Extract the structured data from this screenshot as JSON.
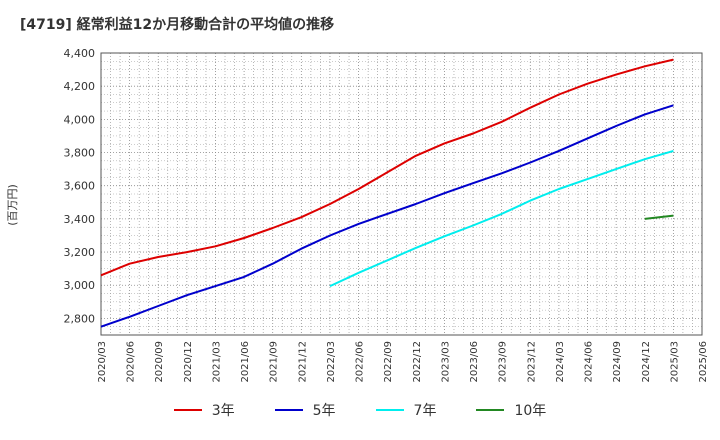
{
  "chart_data": {
    "type": "line",
    "title": "[4719]  経常利益12か月移動合計の平均値の推移",
    "ylabel": "(百万円)",
    "xlabel": "",
    "ylim": [
      2700,
      4400
    ],
    "yticks": [
      2800,
      3000,
      3200,
      3400,
      3600,
      3800,
      4000,
      4200,
      4400
    ],
    "ytick_labels": [
      "2,800",
      "3,000",
      "3,200",
      "3,400",
      "3,600",
      "3,800",
      "4,000",
      "4,200",
      "4,400"
    ],
    "x_categories": [
      "2020/03",
      "2020/06",
      "2020/09",
      "2020/12",
      "2021/03",
      "2021/06",
      "2021/09",
      "2021/12",
      "2022/03",
      "2022/06",
      "2022/09",
      "2022/12",
      "2023/03",
      "2023/06",
      "2023/09",
      "2023/12",
      "2024/03",
      "2024/06",
      "2024/09",
      "2024/12",
      "2025/03",
      "2025/06"
    ],
    "grid": true,
    "legend_position": "bottom",
    "series": [
      {
        "name": "3年",
        "color": "#dd0000",
        "x": [
          "2020/03",
          "2020/06",
          "2020/09",
          "2020/12",
          "2021/03",
          "2021/06",
          "2021/09",
          "2021/12",
          "2022/03",
          "2022/06",
          "2022/09",
          "2022/12",
          "2023/03",
          "2023/06",
          "2023/09",
          "2023/12",
          "2024/03",
          "2024/06",
          "2024/09",
          "2024/12",
          "2025/03"
        ],
        "values": [
          3060,
          3130,
          3170,
          3200,
          3235,
          3285,
          3345,
          3410,
          3490,
          3580,
          3680,
          3780,
          3855,
          3915,
          3985,
          4070,
          4150,
          4215,
          4270,
          4320,
          4360
        ]
      },
      {
        "name": "5年",
        "color": "#0000cc",
        "x": [
          "2020/03",
          "2020/06",
          "2020/09",
          "2020/12",
          "2021/03",
          "2021/06",
          "2021/09",
          "2021/12",
          "2022/03",
          "2022/06",
          "2022/09",
          "2022/12",
          "2023/03",
          "2023/06",
          "2023/09",
          "2023/12",
          "2024/03",
          "2024/06",
          "2024/09",
          "2024/12",
          "2025/03"
        ],
        "values": [
          2750,
          2810,
          2875,
          2940,
          2995,
          3050,
          3130,
          3220,
          3300,
          3370,
          3430,
          3490,
          3555,
          3615,
          3675,
          3740,
          3810,
          3885,
          3960,
          4030,
          4085
        ]
      },
      {
        "name": "7年",
        "color": "#00eeee",
        "x": [
          "2022/03",
          "2022/06",
          "2022/09",
          "2022/12",
          "2023/03",
          "2023/06",
          "2023/09",
          "2023/12",
          "2024/03",
          "2024/06",
          "2024/09",
          "2024/12",
          "2025/03"
        ],
        "values": [
          2995,
          3075,
          3150,
          3225,
          3295,
          3360,
          3430,
          3510,
          3580,
          3640,
          3700,
          3760,
          3810
        ]
      },
      {
        "name": "10年",
        "color": "#228822",
        "x": [
          "2024/12",
          "2025/03"
        ],
        "values": [
          3400,
          3420
        ]
      }
    ]
  }
}
